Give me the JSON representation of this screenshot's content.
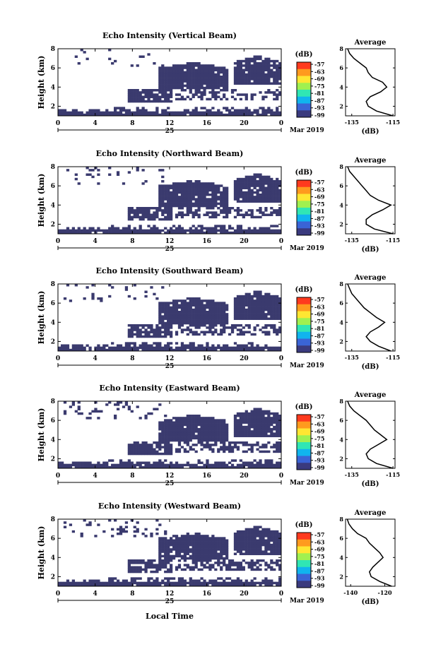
{
  "figure": {
    "xlabel_bottom": "Local Time",
    "day_label": "25",
    "month_year_label": "Mar 2019",
    "colorbar_unit": "(dB)",
    "colorbar_ticks": [
      "-57",
      "-63",
      "-69",
      "-75",
      "-81",
      "-87",
      "-93",
      "-99"
    ],
    "colorbar_colors": [
      "#ff3a1e",
      "#ff9a1e",
      "#ffe632",
      "#a0f050",
      "#30e6b4",
      "#10b4ee",
      "#3a64d6",
      "#3a3a7e"
    ],
    "echo_color": "#3a3a6e",
    "profile_title": "Average",
    "profile_xunit": "(dB)"
  },
  "chart_data": [
    {
      "type": "heatmap",
      "title": "Echo Intensity (Vertical Beam)",
      "ylabel": "Height (km)",
      "xlim": [
        0,
        24
      ],
      "ylim": [
        1,
        8
      ],
      "xticks": [
        "0",
        "4",
        "8",
        "12",
        "16",
        "20",
        "0"
      ],
      "yticks": [
        "2",
        "4",
        "6",
        "8"
      ],
      "profile": {
        "xticks": [
          "-135",
          "-115"
        ],
        "xlim": [
          -138,
          -114
        ],
        "heights": [
          1.0,
          1.5,
          2.0,
          2.5,
          3.0,
          3.5,
          4.0,
          4.5,
          5.0,
          5.5,
          6.0,
          6.5,
          7.0,
          7.5,
          8.0
        ],
        "values": [
          -115,
          -123,
          -127,
          -128,
          -126,
          -121,
          -118,
          -120,
          -125,
          -127,
          -128,
          -131,
          -134,
          -136,
          -137
        ]
      }
    },
    {
      "type": "heatmap",
      "title": "Echo Intensity (Northward Beam)",
      "ylabel": "Height (km)",
      "xlim": [
        0,
        24
      ],
      "ylim": [
        1,
        8
      ],
      "xticks": [
        "0",
        "4",
        "8",
        "12",
        "16",
        "20",
        "0"
      ],
      "yticks": [
        "2",
        "4",
        "6",
        "8"
      ],
      "profile": {
        "xticks": [
          "-135",
          "-115"
        ],
        "xlim": [
          -138,
          -114
        ],
        "heights": [
          1.0,
          1.5,
          2.0,
          2.5,
          3.0,
          3.5,
          4.0,
          4.5,
          5.0,
          5.5,
          6.0,
          6.5,
          7.0,
          7.5,
          8.0
        ],
        "values": [
          -115,
          -124,
          -128,
          -128,
          -125,
          -120,
          -116,
          -122,
          -126,
          -128,
          -130,
          -132,
          -134,
          -136,
          -137
        ]
      }
    },
    {
      "type": "heatmap",
      "title": "Echo Intensity (Southward Beam)",
      "ylabel": "Height (km)",
      "xlim": [
        0,
        24
      ],
      "ylim": [
        1,
        8
      ],
      "xticks": [
        "0",
        "4",
        "8",
        "12",
        "16",
        "20",
        "0"
      ],
      "yticks": [
        "2",
        "4",
        "6",
        "8"
      ],
      "profile": {
        "xticks": [
          "-135",
          "-115"
        ],
        "xlim": [
          -138,
          -114
        ],
        "heights": [
          1.0,
          1.5,
          2.0,
          2.5,
          3.0,
          3.5,
          4.0,
          4.5,
          5.0,
          5.5,
          6.0,
          6.5,
          7.0,
          7.5,
          8.0
        ],
        "values": [
          -116,
          -122,
          -126,
          -128,
          -126,
          -122,
          -119,
          -123,
          -126,
          -129,
          -131,
          -133,
          -135,
          -136,
          -137
        ]
      }
    },
    {
      "type": "heatmap",
      "title": "Echo Intensity (Eastward Beam)",
      "ylabel": "Height (km)",
      "xlim": [
        0,
        24
      ],
      "ylim": [
        1,
        8
      ],
      "xticks": [
        "0",
        "4",
        "8",
        "12",
        "16",
        "20",
        "0"
      ],
      "yticks": [
        "2",
        "4",
        "6",
        "8"
      ],
      "profile": {
        "xticks": [
          "-135",
          "-115"
        ],
        "xlim": [
          -138,
          -114
        ],
        "heights": [
          1.0,
          1.5,
          2.0,
          2.5,
          3.0,
          3.5,
          4.0,
          4.5,
          5.0,
          5.5,
          6.0,
          6.5,
          7.0,
          7.5,
          8.0
        ],
        "values": [
          -115,
          -123,
          -127,
          -128,
          -126,
          -122,
          -118,
          -121,
          -124,
          -126,
          -128,
          -131,
          -134,
          -136,
          -137
        ]
      }
    },
    {
      "type": "heatmap",
      "title": "Echo Intensity (Westward Beam)",
      "ylabel": "Height (km)",
      "xlim": [
        0,
        24
      ],
      "ylim": [
        1,
        8
      ],
      "xticks": [
        "0",
        "4",
        "8",
        "12",
        "16",
        "20",
        "0"
      ],
      "yticks": [
        "2",
        "4",
        "6",
        "8"
      ],
      "profile": {
        "xticks": [
          "-140",
          "-120"
        ],
        "xlim": [
          -143,
          -114
        ],
        "heights": [
          1.0,
          1.5,
          2.0,
          2.5,
          3.0,
          3.5,
          4.0,
          4.5,
          5.0,
          5.5,
          6.0,
          6.5,
          7.0,
          7.5,
          8.0
        ],
        "values": [
          -116,
          -123,
          -128,
          -129,
          -127,
          -124,
          -121,
          -123,
          -126,
          -129,
          -131,
          -136,
          -139,
          -141,
          -142
        ]
      }
    }
  ]
}
